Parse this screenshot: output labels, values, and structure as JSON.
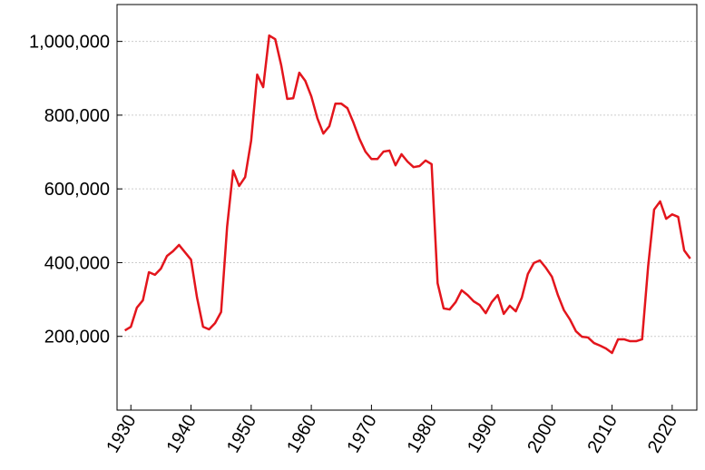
{
  "chart_data": {
    "type": "line",
    "x": [
      1929,
      1930,
      1931,
      1932,
      1933,
      1934,
      1935,
      1936,
      1937,
      1938,
      1939,
      1940,
      1941,
      1942,
      1943,
      1944,
      1945,
      1946,
      1947,
      1948,
      1949,
      1950,
      1951,
      1952,
      1953,
      1954,
      1955,
      1956,
      1957,
      1958,
      1959,
      1960,
      1961,
      1962,
      1963,
      1964,
      1965,
      1966,
      1967,
      1968,
      1969,
      1970,
      1971,
      1972,
      1973,
      1974,
      1975,
      1976,
      1977,
      1978,
      1979,
      1980,
      1981,
      1982,
      1983,
      1984,
      1985,
      1986,
      1987,
      1988,
      1989,
      1990,
      1991,
      1992,
      1993,
      1994,
      1995,
      1996,
      1997,
      1998,
      1999,
      2000,
      2001,
      2002,
      2003,
      2004,
      2005,
      2006,
      2007,
      2008,
      2009,
      2010,
      2011,
      2012,
      2013,
      2014,
      2015,
      2016,
      2017,
      2018,
      2019,
      2020,
      2021,
      2022,
      2023
    ],
    "series": [
      {
        "color": "#e3151c",
        "values": [
          216000,
          226000,
          278000,
          298000,
          374000,
          367000,
          384000,
          418000,
          431000,
          448000,
          428000,
          408000,
          305000,
          226000,
          219000,
          236000,
          266000,
          497000,
          650000,
          608000,
          632000,
          731000,
          910000,
          876000,
          1016000,
          1006000,
          935000,
          844000,
          846000,
          915000,
          893000,
          851000,
          792000,
          750000,
          770000,
          831000,
          831000,
          819000,
          780000,
          736000,
          701000,
          681000,
          681000,
          701000,
          704000,
          664000,
          694000,
          674000,
          659000,
          662000,
          677000,
          667000,
          344000,
          276000,
          273000,
          293000,
          325000,
          312000,
          295000,
          285000,
          263000,
          293000,
          312000,
          261000,
          283000,
          268000,
          305000,
          369000,
          399000,
          406000,
          386000,
          362000,
          312000,
          271000,
          246000,
          214000,
          199000,
          197000,
          182000,
          175000,
          167000,
          155000,
          192000,
          192000,
          187000,
          187000,
          192000,
          389000,
          544000,
          566000,
          519000,
          531000,
          524000,
          433000,
          411000
        ]
      }
    ],
    "xlim": [
      1927.7,
      2024.1
    ],
    "xticks": [
      1930,
      1940,
      1950,
      1960,
      1970,
      1980,
      1990,
      2000,
      2010,
      2020
    ],
    "ylim": [
      0,
      1100000
    ],
    "yticks": [
      {
        "value": 200000,
        "label": "200,000"
      },
      {
        "value": 400000,
        "label": "400,000"
      },
      {
        "value": 600000,
        "label": "600,000"
      },
      {
        "value": 800000,
        "label": "800,000"
      },
      {
        "value": 1000000,
        "label": "1,000,000"
      }
    ],
    "grid": true
  }
}
